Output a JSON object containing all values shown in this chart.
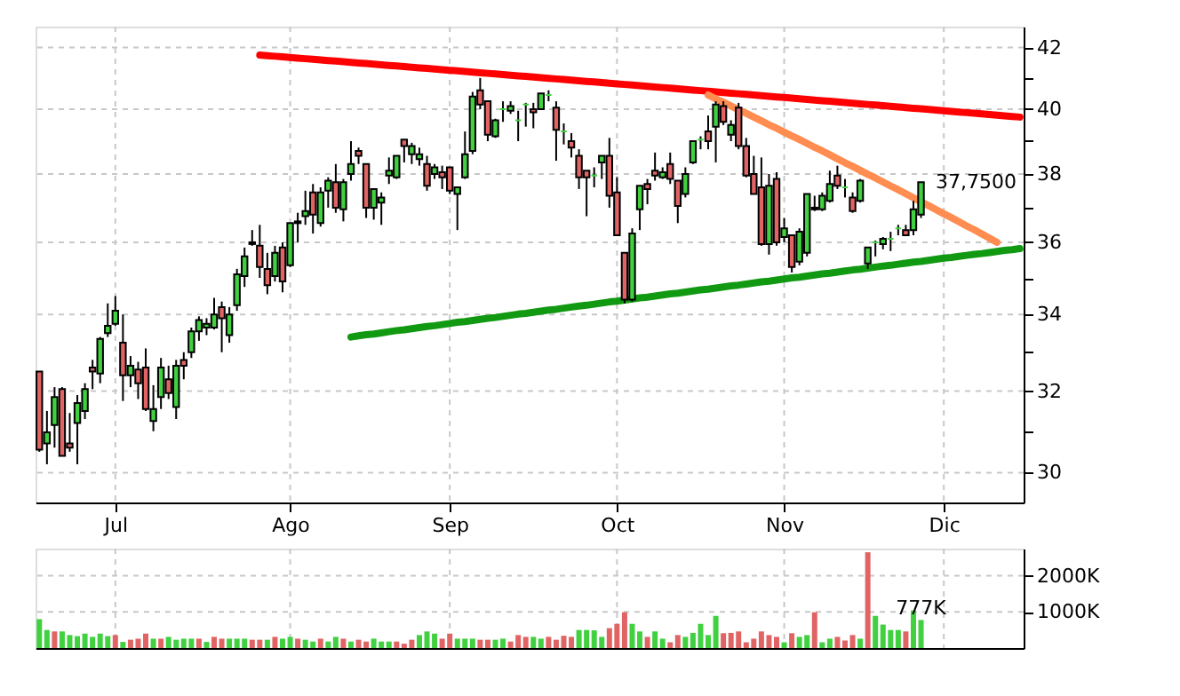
{
  "chart_data": [
    {
      "type": "candlestick",
      "categories": [
        null,
        null,
        null,
        null,
        null,
        null,
        null,
        null,
        null,
        null,
        "Jul",
        null,
        null,
        null,
        null,
        null,
        null,
        null,
        null,
        null,
        null,
        null,
        null,
        null,
        null,
        null,
        null,
        null,
        null,
        null,
        null,
        null,
        null,
        "Ago",
        null,
        null,
        null,
        null,
        null,
        null,
        null,
        null,
        null,
        null,
        null,
        null,
        null,
        null,
        null,
        null,
        null,
        null,
        null,
        null,
        "Sep",
        null,
        null,
        null,
        null,
        null,
        null,
        null,
        null,
        null,
        null,
        null,
        null,
        null,
        null,
        null,
        null,
        null,
        null,
        null,
        null,
        null,
        "Oct",
        null,
        null,
        null,
        null,
        null,
        null,
        null,
        null,
        null,
        null,
        null,
        null,
        null,
        null,
        null,
        null,
        null,
        null,
        null,
        null,
        null,
        "Nov",
        null,
        null,
        null,
        null,
        null,
        null,
        null,
        null,
        null,
        null,
        null,
        null,
        null,
        null,
        null,
        null,
        null,
        null,
        null,
        null,
        "Dic",
        null,
        null,
        null,
        null,
        null,
        null,
        null,
        null,
        null,
        null
      ],
      "ohlc": [
        [
          32.5,
          32.5,
          30.5,
          30.55
        ],
        [
          30.7,
          31.5,
          30.2,
          30.97
        ],
        [
          31.15,
          32.1,
          30.6,
          31.85
        ],
        [
          32.05,
          32.1,
          30.4,
          30.4
        ],
        [
          30.7,
          31.45,
          30.5,
          30.6
        ],
        [
          31.2,
          31.9,
          30.2,
          31.7
        ],
        [
          31.5,
          32.2,
          31.3,
          32.05
        ],
        [
          32.6,
          32.8,
          32.05,
          32.5
        ],
        [
          32.45,
          33.4,
          32.2,
          33.35
        ],
        [
          33.5,
          34.3,
          33.4,
          33.7
        ],
        [
          33.75,
          34.5,
          33.7,
          34.1
        ],
        [
          33.25,
          34.0,
          31.75,
          32.4
        ],
        [
          32.4,
          32.9,
          32.1,
          32.65
        ],
        [
          32.55,
          32.75,
          31.8,
          32.2
        ],
        [
          32.6,
          33.1,
          31.5,
          31.55
        ],
        [
          31.25,
          32.15,
          31.0,
          31.55
        ],
        [
          31.85,
          32.85,
          31.55,
          32.6
        ],
        [
          32.3,
          32.65,
          31.8,
          31.95
        ],
        [
          31.6,
          32.8,
          31.3,
          32.65
        ],
        [
          32.8,
          33.0,
          32.3,
          32.65
        ],
        [
          33.0,
          33.65,
          32.85,
          33.55
        ],
        [
          33.55,
          33.95,
          33.3,
          33.85
        ],
        [
          33.65,
          33.9,
          33.45,
          33.75
        ],
        [
          33.65,
          34.45,
          33.6,
          34.0
        ],
        [
          34.2,
          34.35,
          33.0,
          33.9
        ],
        [
          33.45,
          34.2,
          33.25,
          34.0
        ],
        [
          34.25,
          35.25,
          34.1,
          35.1
        ],
        [
          35.05,
          35.85,
          34.75,
          35.6
        ],
        [
          36.0,
          36.35,
          35.9,
          35.95
        ],
        [
          35.9,
          36.5,
          35.0,
          35.3
        ],
        [
          35.25,
          35.7,
          34.55,
          34.8
        ],
        [
          35.05,
          35.9,
          34.9,
          35.7
        ],
        [
          35.85,
          36.0,
          34.6,
          34.9
        ],
        [
          35.35,
          36.55,
          35.3,
          36.55
        ],
        [
          36.55,
          36.85,
          36.0,
          36.6
        ],
        [
          36.75,
          37.5,
          36.5,
          36.9
        ],
        [
          37.45,
          37.7,
          36.25,
          36.8
        ],
        [
          36.55,
          37.6,
          36.45,
          37.45
        ],
        [
          37.5,
          37.9,
          37.0,
          37.8
        ],
        [
          37.75,
          38.3,
          36.85,
          37.0
        ],
        [
          36.95,
          37.85,
          36.6,
          37.75
        ],
        [
          38.0,
          39.0,
          37.8,
          38.3
        ],
        [
          38.7,
          38.8,
          38.3,
          38.55
        ],
        [
          38.3,
          38.3,
          36.7,
          37.0
        ],
        [
          37.0,
          37.55,
          36.65,
          37.55
        ],
        [
          37.15,
          37.45,
          36.5,
          37.3
        ],
        [
          37.95,
          38.5,
          37.7,
          38.1
        ],
        [
          37.9,
          38.55,
          37.85,
          38.55
        ],
        [
          39.05,
          39.05,
          38.35,
          38.85
        ],
        [
          38.6,
          38.95,
          38.3,
          38.85
        ],
        [
          38.45,
          38.8,
          38.25,
          38.6
        ],
        [
          38.3,
          38.55,
          37.5,
          37.65
        ],
        [
          38.0,
          38.3,
          37.85,
          38.2
        ],
        [
          38.05,
          38.25,
          37.55,
          37.9
        ],
        [
          38.2,
          38.2,
          37.4,
          37.5
        ],
        [
          37.4,
          37.6,
          36.35,
          37.6
        ],
        [
          37.9,
          39.3,
          37.85,
          38.6
        ],
        [
          38.7,
          40.55,
          38.6,
          40.4
        ],
        [
          40.6,
          41.0,
          40.0,
          40.15
        ],
        [
          40.25,
          40.25,
          39.0,
          39.2
        ],
        [
          39.15,
          39.7,
          39.1,
          39.65
        ],
        [
          40.0,
          40.25,
          39.6,
          40.0
        ],
        [
          39.95,
          40.25,
          39.85,
          40.1
        ],
        [
          39.65,
          39.95,
          39.0,
          39.65
        ],
        [
          40.15,
          40.2,
          39.45,
          40.15
        ],
        [
          40.0,
          40.2,
          39.4,
          39.9
        ],
        [
          40.0,
          40.5,
          40.0,
          40.5
        ],
        [
          40.45,
          40.6,
          40.25,
          40.45
        ],
        [
          40.05,
          40.25,
          38.4,
          39.35
        ],
        [
          39.3,
          39.55,
          38.9,
          39.3
        ],
        [
          39.0,
          39.25,
          38.5,
          38.8
        ],
        [
          38.55,
          38.75,
          37.55,
          37.9
        ],
        [
          38.1,
          38.1,
          36.75,
          37.9
        ],
        [
          37.95,
          38.2,
          37.6,
          37.95
        ],
        [
          38.35,
          38.55,
          37.85,
          38.55
        ],
        [
          38.55,
          39.1,
          37.0,
          37.35
        ],
        [
          37.45,
          37.9,
          36.2,
          36.2
        ],
        [
          35.7,
          35.7,
          34.3,
          34.4
        ],
        [
          34.4,
          36.4,
          34.35,
          36.25
        ],
        [
          36.95,
          37.65,
          36.35,
          37.65
        ],
        [
          37.7,
          37.85,
          37.1,
          37.55
        ],
        [
          38.1,
          38.65,
          37.8,
          37.95
        ],
        [
          37.9,
          38.2,
          37.85,
          38.05
        ],
        [
          38.3,
          38.65,
          37.7,
          37.85
        ],
        [
          37.8,
          37.8,
          36.55,
          37.05
        ],
        [
          37.4,
          38.2,
          37.3,
          38.0
        ],
        [
          38.35,
          39.0,
          38.3,
          39.0
        ],
        [
          39.05,
          39.15,
          38.75,
          39.05
        ],
        [
          39.3,
          39.8,
          38.75,
          39.0
        ],
        [
          39.45,
          40.25,
          38.35,
          40.15
        ],
        [
          40.1,
          40.25,
          39.5,
          39.6
        ],
        [
          39.2,
          39.65,
          39.0,
          39.5
        ],
        [
          40.05,
          40.2,
          38.75,
          38.85
        ],
        [
          38.85,
          39.1,
          37.9,
          37.95
        ],
        [
          38.0,
          38.55,
          37.4,
          37.4
        ],
        [
          37.6,
          38.5,
          35.9,
          35.95
        ],
        [
          35.95,
          38.0,
          35.65,
          37.65
        ],
        [
          37.85,
          38.05,
          35.9,
          36.0
        ],
        [
          36.15,
          36.7,
          36.0,
          36.4
        ],
        [
          36.2,
          36.2,
          35.15,
          35.3
        ],
        [
          35.45,
          36.4,
          35.35,
          36.3
        ],
        [
          35.7,
          37.4,
          35.6,
          37.4
        ],
        [
          36.95,
          37.35,
          36.9,
          37.0
        ],
        [
          36.95,
          37.45,
          36.9,
          37.35
        ],
        [
          37.2,
          38.1,
          37.15,
          37.7
        ],
        [
          37.95,
          38.25,
          37.55,
          37.65
        ],
        [
          37.6,
          37.85,
          37.3,
          37.6
        ],
        [
          37.3,
          37.45,
          36.85,
          36.9
        ],
        [
          37.2,
          37.85,
          37.15,
          37.8
        ],
        [
          35.4,
          35.85,
          35.25,
          35.85
        ],
        [
          36.0,
          36.05,
          35.6,
          36.0
        ],
        [
          35.95,
          36.15,
          35.8,
          36.1
        ],
        [
          36.1,
          36.3,
          35.75,
          36.1
        ],
        [
          36.4,
          36.5,
          36.2,
          36.4
        ],
        [
          36.35,
          36.5,
          36.2,
          36.2
        ],
        [
          36.35,
          37.2,
          36.2,
          36.95
        ],
        [
          36.8,
          37.75,
          36.7,
          37.75
        ],
        null,
        null,
        null,
        null,
        null,
        null,
        null,
        null,
        null,
        null,
        null,
        null,
        null
      ],
      "colors": [
        "#e06464",
        "#40d040",
        "#40d040",
        "#e06464",
        "#e06464",
        "#40d040",
        "#40d040",
        "#e06464",
        "#40d040",
        "#40d040",
        "#40d040",
        "#e06464",
        "#40d040",
        "#e06464",
        "#e06464",
        "#40d040",
        "#40d040",
        "#e06464",
        "#40d040",
        "#e06464",
        "#40d040",
        "#40d040",
        "#40d040",
        "#40d040",
        "#e06464",
        "#40d040",
        "#40d040",
        "#40d040",
        "#e06464",
        "#e06464",
        "#e06464",
        "#40d040",
        "#e06464",
        "#40d040",
        "#40d040",
        "#40d040",
        "#e06464",
        "#40d040",
        "#40d040",
        "#e06464",
        "#40d040",
        "#40d040",
        "#e06464",
        "#e06464",
        "#40d040",
        "#40d040",
        "#40d040",
        "#40d040",
        "#e06464",
        "#40d040",
        "#40d040",
        "#e06464",
        "#40d040",
        "#e06464",
        "#e06464",
        "#40d040",
        "#40d040",
        "#40d040",
        "#e06464",
        "#e06464",
        "#40d040",
        "#40d040",
        "#40d040",
        "#40d040",
        "#40d040",
        "#e06464",
        "#40d040",
        "#40d040",
        "#e06464",
        "#40d040",
        "#e06464",
        "#e06464",
        "#e06464",
        "#40d040",
        "#40d040",
        "#e06464",
        "#e06464",
        "#e06464",
        "#40d040",
        "#40d040",
        "#e06464",
        "#e06464",
        "#40d040",
        "#e06464",
        "#e06464",
        "#40d040",
        "#40d040",
        "#40d040",
        "#e06464",
        "#40d040",
        "#e06464",
        "#40d040",
        "#e06464",
        "#e06464",
        "#e06464",
        "#e06464",
        "#40d040",
        "#e06464",
        "#40d040",
        "#e06464",
        "#40d040",
        "#40d040",
        "#40d040",
        "#40d040",
        "#40d040",
        "#e06464",
        "#40d040",
        "#e06464",
        "#40d040",
        "#40d040",
        "#40d040",
        "#40d040",
        "#40d040",
        "#40d040",
        "#e06464",
        "#40d040",
        "#40d040",
        null,
        null,
        null,
        null,
        null,
        null,
        null,
        null,
        null,
        null,
        null,
        null,
        null
      ],
      "series": [
        {
          "type": "line",
          "color": "#ff0000",
          "values": [
            null,
            null,
            null,
            null,
            null,
            null,
            null,
            null,
            null,
            null,
            null,
            null,
            null,
            null,
            null,
            null,
            null,
            null,
            null,
            null,
            null,
            null,
            null,
            null,
            null,
            null,
            null,
            null,
            null,
            41.75,
            41.73,
            41.71,
            41.69,
            41.67,
            41.65,
            41.63,
            41.61,
            41.59,
            41.57,
            41.55,
            41.53,
            41.51,
            41.49,
            41.47,
            41.45,
            41.43,
            41.41,
            41.39,
            41.37,
            41.35,
            41.33,
            41.31,
            41.29,
            41.27,
            41.25,
            41.23,
            41.21,
            41.19,
            41.17,
            41.15,
            41.13,
            41.11,
            41.09,
            41.07,
            41.05,
            41.03,
            41.01,
            40.99,
            40.97,
            40.95,
            40.93,
            40.91,
            40.89,
            40.87,
            40.85,
            40.83,
            40.81,
            40.79,
            40.77,
            40.75,
            40.73,
            40.71,
            40.69,
            40.67,
            40.65,
            40.63,
            40.61,
            40.59,
            40.57,
            40.55,
            40.53,
            40.51,
            40.49,
            40.47,
            40.45,
            40.43,
            40.41,
            40.39,
            40.37,
            40.35,
            40.33,
            40.31,
            40.29,
            40.27,
            40.25,
            40.23,
            40.21,
            40.19,
            40.17,
            40.15,
            40.13,
            40.11,
            40.09,
            40.07,
            40.05,
            40.03,
            40.01,
            39.99,
            39.97,
            39.95,
            39.93,
            39.91,
            39.89,
            39.87,
            39.85,
            39.83,
            39.81,
            39.79,
            39.77,
            39.75
          ]
        },
        {
          "type": "line",
          "color": "#ff8c50",
          "values": [
            null,
            null,
            null,
            null,
            null,
            null,
            null,
            null,
            null,
            null,
            null,
            null,
            null,
            null,
            null,
            null,
            null,
            null,
            null,
            null,
            null,
            null,
            null,
            null,
            null,
            null,
            null,
            null,
            null,
            null,
            null,
            null,
            null,
            null,
            null,
            null,
            null,
            null,
            null,
            null,
            null,
            null,
            null,
            null,
            null,
            null,
            null,
            null,
            null,
            null,
            null,
            null,
            null,
            null,
            null,
            null,
            null,
            null,
            null,
            null,
            null,
            null,
            null,
            null,
            null,
            null,
            null,
            null,
            null,
            null,
            null,
            null,
            null,
            null,
            null,
            null,
            null,
            null,
            null,
            null,
            null,
            null,
            null,
            null,
            null,
            null,
            null,
            null,
            40.45,
            40.33,
            40.22,
            40.1,
            39.98,
            39.87,
            39.75,
            39.63,
            39.51,
            39.4,
            39.28,
            39.16,
            39.05,
            38.93,
            38.81,
            38.7,
            38.58,
            38.46,
            38.34,
            38.23,
            38.11,
            37.99,
            37.88,
            37.76,
            37.64,
            37.53,
            37.41,
            37.29,
            37.17,
            37.06,
            36.94,
            36.82,
            36.71,
            36.59,
            36.47,
            36.36,
            36.24,
            36.12,
            36.0,
            null,
            null,
            null
          ]
        },
        {
          "type": "line",
          "color": "#119911",
          "values": [
            null,
            null,
            null,
            null,
            null,
            null,
            null,
            null,
            null,
            null,
            null,
            null,
            null,
            null,
            null,
            null,
            null,
            null,
            null,
            null,
            null,
            null,
            null,
            null,
            null,
            null,
            null,
            null,
            null,
            null,
            null,
            null,
            null,
            null,
            null,
            null,
            null,
            null,
            null,
            null,
            null,
            33.4,
            33.43,
            33.46,
            33.48,
            33.51,
            33.54,
            33.57,
            33.59,
            33.62,
            33.65,
            33.68,
            33.7,
            33.73,
            33.76,
            33.79,
            33.81,
            33.84,
            33.87,
            33.9,
            33.92,
            33.95,
            33.98,
            34.01,
            34.03,
            34.06,
            34.09,
            34.12,
            34.14,
            34.17,
            34.2,
            34.23,
            34.25,
            34.28,
            34.31,
            34.34,
            34.36,
            34.39,
            34.42,
            34.45,
            34.47,
            34.5,
            34.53,
            34.56,
            34.58,
            34.61,
            34.64,
            34.67,
            34.69,
            34.72,
            34.75,
            34.78,
            34.8,
            34.83,
            34.86,
            34.89,
            34.91,
            34.94,
            34.97,
            35.0,
            35.02,
            35.05,
            35.08,
            35.11,
            35.13,
            35.16,
            35.19,
            35.22,
            35.24,
            35.27,
            35.3,
            35.33,
            35.35,
            35.38,
            35.41,
            35.44,
            35.46,
            35.49,
            35.52,
            35.55,
            35.57,
            35.6,
            35.63,
            35.66,
            35.68,
            35.71,
            35.74,
            35.77,
            35.79,
            35.82
          ]
        }
      ],
      "ylim": [
        29.3,
        42.7
      ],
      "yticks": [
        30,
        {
          "value": 31,
          "label": null
        },
        32,
        {
          "value": 33,
          "label": null
        },
        34,
        {
          "value": 35,
          "label": null
        },
        36,
        {
          "value": 37,
          "label": null
        },
        38,
        {
          "value": 39,
          "label": null
        },
        40,
        {
          "value": 41,
          "label": null
        },
        42
      ],
      "log": true,
      "grid": true,
      "annotations": [
        "37,7500"
      ]
    },
    {
      "type": "bar",
      "categories": [
        null,
        null,
        null,
        null,
        null,
        null,
        null,
        null,
        null,
        null,
        null,
        null,
        null,
        null,
        null,
        null,
        null,
        null,
        null,
        null,
        null,
        null,
        null,
        null,
        null,
        null,
        null,
        null,
        null,
        null,
        null,
        null,
        null,
        null,
        null,
        null,
        null,
        null,
        null,
        null,
        null,
        null,
        null,
        null,
        null,
        null,
        null,
        null,
        null,
        null,
        null,
        null,
        null,
        null,
        null,
        null,
        null,
        null,
        null,
        null,
        null,
        null,
        null,
        null,
        null,
        null,
        null,
        null,
        null,
        null,
        null,
        null,
        null,
        null,
        null,
        null,
        null,
        null,
        null,
        null,
        null,
        null,
        null,
        null,
        null,
        null,
        null,
        null,
        null,
        null,
        null,
        null,
        null,
        null,
        null,
        null,
        null,
        null,
        null,
        null,
        null,
        null,
        null,
        null,
        null,
        null,
        null,
        null,
        null,
        null,
        null,
        null,
        null,
        null,
        null,
        null,
        null,
        null,
        null,
        null,
        null,
        null,
        null,
        null,
        null,
        null,
        null,
        null,
        null,
        null
      ],
      "values": [
        800000,
        500000,
        460000,
        460000,
        360000,
        330000,
        400000,
        310000,
        400000,
        330000,
        360000,
        170000,
        230000,
        260000,
        400000,
        260000,
        260000,
        310000,
        230000,
        260000,
        260000,
        260000,
        170000,
        310000,
        260000,
        260000,
        260000,
        260000,
        230000,
        230000,
        230000,
        310000,
        260000,
        310000,
        260000,
        230000,
        180000,
        260000,
        180000,
        310000,
        260000,
        180000,
        230000,
        180000,
        260000,
        180000,
        180000,
        180000,
        120000,
        230000,
        360000,
        460000,
        400000,
        260000,
        400000,
        260000,
        260000,
        260000,
        230000,
        230000,
        230000,
        260000,
        180000,
        360000,
        310000,
        310000,
        260000,
        310000,
        230000,
        340000,
        310000,
        500000,
        500000,
        490000,
        310000,
        550000,
        670000,
        990000,
        670000,
        460000,
        310000,
        460000,
        260000,
        160000,
        360000,
        310000,
        420000,
        670000,
        360000,
        890000,
        410000,
        420000,
        460000,
        160000,
        260000,
        460000,
        360000,
        310000,
        160000,
        410000,
        310000,
        360000,
        990000,
        160000,
        260000,
        310000,
        210000,
        360000,
        260000,
        2650000,
        890000,
        650000,
        500000,
        500000,
        460000,
        1040000,
        777000,
        null,
        null,
        null,
        null,
        null,
        null,
        null,
        null,
        null,
        null,
        null,
        null,
        null
      ],
      "colors": [
        "#40d040",
        "#40d040",
        "#e06464",
        "#40d040",
        "#40d040",
        "#40d040",
        "#40d040",
        "#40d040",
        "#40d040",
        "#40d040",
        "#e06464",
        "#40d040",
        "#e06464",
        "#e06464",
        "#e06464",
        "#40d040",
        "#e06464",
        "#40d040",
        "#40d040",
        "#40d040",
        "#40d040",
        "#e06464",
        "#40d040",
        "#e06464",
        "#e06464",
        "#40d040",
        "#40d040",
        "#40d040",
        "#e06464",
        "#e06464",
        "#40d040",
        "#e06464",
        "#40d040",
        "#40d040",
        "#e06464",
        "#40d040",
        "#40d040",
        "#e06464",
        "#40d040",
        "#40d040",
        "#e06464",
        "#40d040",
        "#e06464",
        "#e06464",
        "#40d040",
        "#40d040",
        "#40d040",
        "#e06464",
        "#e06464",
        "#e06464",
        "#40d040",
        "#40d040",
        "#40d040",
        "#e06464",
        "#e06464",
        "#40d040",
        "#40d040",
        "#40d040",
        "#e06464",
        "#e06464",
        "#40d040",
        "#40d040",
        "#e06464",
        "#e06464",
        "#e06464",
        "#40d040",
        "#40d040",
        "#e06464",
        "#e06464",
        "#e06464",
        "#e06464",
        "#40d040",
        "#40d040",
        "#40d040",
        "#40d040",
        "#e06464",
        "#e06464",
        "#e06464",
        "#40d040",
        "#40d040",
        "#e06464",
        "#40d040",
        "#40d040",
        "#e06464",
        "#e06464",
        "#40d040",
        "#40d040",
        "#40d040",
        "#40d040",
        "#40d040",
        "#e06464",
        "#e06464",
        "#e06464",
        "#e06464",
        "#e06464",
        "#e06464",
        "#e06464",
        "#e06464",
        "#40d040",
        "#e06464",
        "#40d040",
        "#40d040",
        "#e06464",
        "#40d040",
        "#40d040",
        "#e06464",
        "#e06464",
        "#e06464",
        "#40d040",
        "#e06464",
        "#40d040",
        "#40d040",
        "#40d040",
        "#40d040",
        "#e06464",
        "#40d040",
        "#40d040",
        null,
        null,
        null,
        null,
        null,
        null,
        null,
        null,
        null,
        null,
        null,
        null,
        null
      ],
      "value_labels": [
        null,
        null,
        null,
        null,
        null,
        null,
        null,
        null,
        null,
        null,
        null,
        null,
        null,
        null,
        null,
        null,
        null,
        null,
        null,
        null,
        null,
        null,
        null,
        null,
        null,
        null,
        null,
        null,
        null,
        null,
        null,
        null,
        null,
        null,
        null,
        null,
        null,
        null,
        null,
        null,
        null,
        null,
        null,
        null,
        null,
        null,
        null,
        null,
        null,
        null,
        null,
        null,
        null,
        null,
        null,
        null,
        null,
        null,
        null,
        null,
        null,
        null,
        null,
        null,
        null,
        null,
        null,
        null,
        null,
        null,
        null,
        null,
        null,
        null,
        null,
        null,
        null,
        null,
        null,
        null,
        null,
        null,
        null,
        null,
        null,
        null,
        null,
        null,
        null,
        null,
        null,
        null,
        null,
        null,
        null,
        null,
        null,
        null,
        null,
        null,
        null,
        null,
        null,
        null,
        null,
        null,
        null,
        null,
        null,
        null,
        null,
        null,
        null,
        null,
        null,
        null,
        "777K",
        null,
        null,
        null,
        null,
        null,
        null,
        null,
        null,
        null,
        null,
        null,
        null,
        null
      ],
      "ylim": [
        0,
        2750000
      ],
      "yticks": [
        {
          "value": 1000000,
          "label": "1000K"
        },
        {
          "value": 2000000,
          "label": "2000K"
        }
      ],
      "grid": true,
      "tick_labels": "y"
    }
  ]
}
